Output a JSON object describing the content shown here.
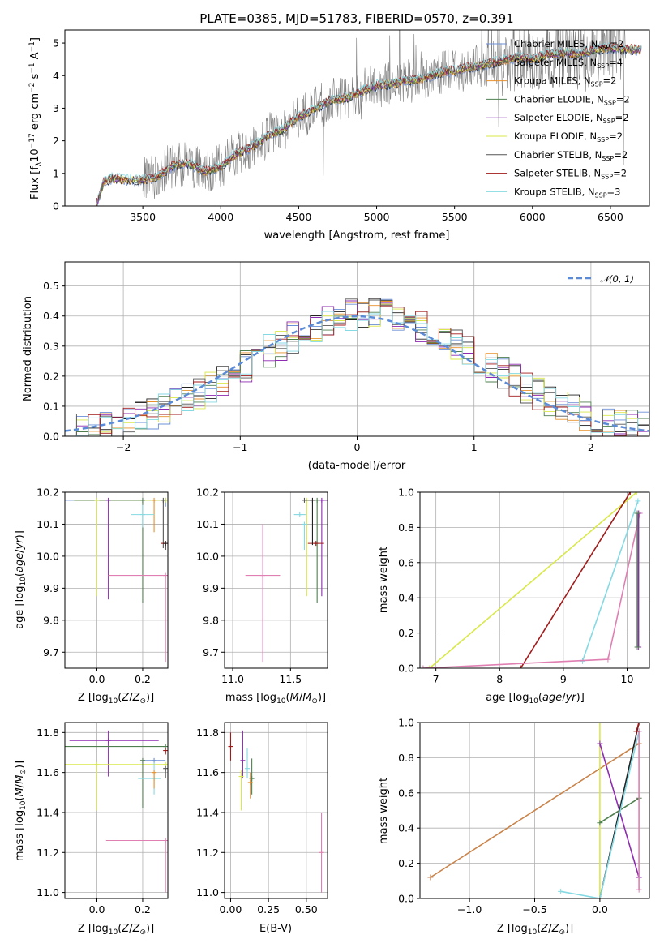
{
  "figure_title": "PLATE=0385, MJD=51783, FIBERID=0570, z=0.391",
  "legend_spectrum": [
    {
      "name": "Chabrier MILES, N$_{SSP}$=2",
      "base": "Chabrier MILES, N",
      "sub": "SSP",
      "tail": "=2",
      "color": "#6b8fd6"
    },
    {
      "name": "Salpeter MILES, N$_{SSP}$=4",
      "base": "Salpeter MILES, N",
      "sub": "SSP",
      "tail": "=4",
      "color": "#222222"
    },
    {
      "name": "Kroupa MILES, N$_{SSP}$=2",
      "base": "Kroupa MILES, N",
      "sub": "SSP",
      "tail": "=2",
      "color": "#e8912b"
    },
    {
      "name": "Chabrier ELODIE, N$_{SSP}$=2",
      "base": "Chabrier ELODIE, N",
      "sub": "SSP",
      "tail": "=2",
      "color": "#4f7f4f"
    },
    {
      "name": "Salpeter ELODIE, N$_{SSP}$=2",
      "base": "Salpeter ELODIE, N",
      "sub": "SSP",
      "tail": "=2",
      "color": "#8e2bb0"
    },
    {
      "name": "Kroupa ELODIE, N$_{SSP}$=2",
      "base": "Kroupa ELODIE, N",
      "sub": "SSP",
      "tail": "=2",
      "color": "#d9e84a"
    },
    {
      "name": "Chabrier STELIB, N$_{SSP}$=2",
      "base": "Chabrier STELIB, N",
      "sub": "SSP",
      "tail": "=2",
      "color": "#555555"
    },
    {
      "name": "Salpeter STELIB, N$_{SSP}$=2",
      "base": "Salpeter STELIB, N",
      "sub": "SSP",
      "tail": "=2",
      "color": "#a11a1a"
    },
    {
      "name": "Kroupa STELIB, N$_{SSP}$=3",
      "base": "Kroupa STELIB, N",
      "sub": "SSP",
      "tail": "=3",
      "color": "#85d9e3"
    }
  ],
  "extra_colors": {
    "pink": "#e07fb2",
    "data_gray": "#808080",
    "normal_curve": "#5b8bd6"
  },
  "chart_data": [
    {
      "id": "spectrum",
      "type": "line",
      "xlabel": "wavelength [Angstrom, rest frame]",
      "ylabel": "Flux [f$_\\lambda$10$^{-17}$ erg cm$^{-2}$ s$^{-1}$ A$^{-1}$]",
      "xlim": [
        3000,
        6750
      ],
      "ylim": [
        0,
        5.4
      ],
      "xticks": [
        "3500",
        "4000",
        "4500",
        "5000",
        "5500",
        "6000",
        "6500"
      ],
      "yticks": [
        "0",
        "1",
        "2",
        "3",
        "4",
        "5"
      ],
      "legend": "top-right",
      "model_anchor_points": {
        "x": [
          3200,
          3250,
          3300,
          3400,
          3500,
          3600,
          3700,
          3800,
          3900,
          4000,
          4100,
          4200,
          4300,
          4400,
          4500,
          4600,
          4700,
          4800,
          4900,
          5000,
          5100,
          5200,
          5300,
          5400,
          5500,
          5600,
          5700,
          5800,
          5900,
          6000,
          6100,
          6200,
          6300,
          6400,
          6500,
          6600,
          6700
        ],
        "y": [
          0.0,
          0.75,
          0.85,
          0.8,
          0.8,
          0.9,
          1.25,
          1.3,
          1.05,
          1.2,
          1.6,
          1.8,
          2.15,
          2.35,
          2.75,
          2.95,
          3.25,
          3.3,
          3.5,
          3.7,
          3.75,
          3.85,
          3.9,
          4.1,
          4.15,
          4.25,
          4.35,
          4.45,
          4.55,
          4.5,
          4.65,
          4.7,
          4.65,
          4.8,
          4.85,
          4.8,
          4.8
        ]
      }
    },
    {
      "id": "residuals",
      "type": "histogram",
      "xlabel": "(data-model)/error",
      "ylabel": "Normed distribution",
      "xlim": [
        -2.5,
        2.5
      ],
      "ylim": [
        0,
        0.58
      ],
      "xticks": [
        "−2",
        "−1",
        "0",
        "1",
        "2"
      ],
      "yticks": [
        "0.0",
        "0.1",
        "0.2",
        "0.3",
        "0.4",
        "0.5"
      ],
      "legend": "top-right",
      "legend_entry": "$\\mathcal{N}(0,1)$",
      "legend_base": "𝒩(0, 1)",
      "bin_width": 0.1,
      "bin_start": -2.5,
      "grid": true
    },
    {
      "id": "age_vs_Z",
      "type": "scatter",
      "xlabel": "Z [log$_{10}$(Z/Z$_\\odot$)]",
      "ylabel": "age  [log$_{10}$(age/yr)]",
      "xlim": [
        -0.14,
        0.31
      ],
      "ylim": [
        9.65,
        10.2
      ],
      "xticks": [
        "0.0",
        "0.2"
      ],
      "yticks": [
        "9.7",
        "9.8",
        "9.9",
        "10.0",
        "10.1",
        "10.2"
      ],
      "grid": true,
      "points": [
        {
          "x": 0.3,
          "y": 10.175,
          "xerr": [
            0.44,
            0.0
          ],
          "yerr": [
            0.02,
            0.0
          ],
          "color": "#6b8fd6"
        },
        {
          "x": 0.3,
          "y": 10.175,
          "xerr": [
            0.4,
            0.0
          ],
          "yerr": [
            0.0,
            0.0
          ],
          "color": "#d9e84a"
        },
        {
          "x": 0.2,
          "y": 10.175,
          "xerr": [
            0.3,
            0.0
          ],
          "yerr": [
            0.32,
            0.0
          ],
          "color": "#4f7f4f"
        },
        {
          "x": 0.0,
          "y": 10.175,
          "xerr": [
            0.0,
            0.0
          ],
          "yerr": [
            0.3,
            0.0
          ],
          "color": "#d9e84a"
        },
        {
          "x": 0.05,
          "y": 10.175,
          "xerr": [
            0.0,
            0.0
          ],
          "yerr": [
            0.31,
            0.0
          ],
          "color": "#8e2bb0"
        },
        {
          "x": 0.25,
          "y": 10.175,
          "xerr": [
            0.0,
            0.0
          ],
          "yerr": [
            0.1,
            0.0
          ],
          "color": "#e8912b"
        },
        {
          "x": 0.29,
          "y": 10.175,
          "xerr": [
            0.0,
            0.0
          ],
          "yerr": [
            0.15,
            0.0
          ],
          "color": "#555555"
        },
        {
          "x": 0.2,
          "y": 10.13,
          "xerr": [
            0.05,
            0.05
          ],
          "yerr": [
            0.04,
            0.03
          ],
          "color": "#85d9e3"
        },
        {
          "x": 0.3,
          "y": 10.04,
          "xerr": [
            0.02,
            0.0
          ],
          "yerr": [
            0.0,
            0.0
          ],
          "color": "#a11a1a"
        },
        {
          "x": 0.3,
          "y": 10.04,
          "xerr": [
            0.0,
            0.0
          ],
          "yerr": [
            0.02,
            0.0
          ],
          "color": "#222222"
        },
        {
          "x": 0.3,
          "y": 9.94,
          "xerr": [
            0.25,
            0.0
          ],
          "yerr": [
            0.27,
            0.0
          ],
          "color": "#e07fb2"
        }
      ]
    },
    {
      "id": "age_vs_mass",
      "type": "scatter",
      "xlabel": "mass [log$_{10}$(M/M$_\\odot$)]",
      "ylabel": "",
      "xlim": [
        10.93,
        11.82
      ],
      "ylim": [
        9.65,
        10.2
      ],
      "xticks": [
        "11.0",
        "11.5"
      ],
      "yticks": [
        "9.7",
        "9.8",
        "9.9",
        "10.0",
        "10.1",
        "10.2"
      ],
      "grid": true,
      "points": [
        {
          "x": 11.77,
          "y": 10.175,
          "xerr": [
            0.0,
            0.05
          ],
          "yerr": [
            0.3,
            0.0
          ],
          "color": "#8e2bb0"
        },
        {
          "x": 11.73,
          "y": 10.175,
          "xerr": [
            0.0,
            0.0
          ],
          "yerr": [
            0.32,
            0.0
          ],
          "color": "#4f7f4f"
        },
        {
          "x": 11.64,
          "y": 10.175,
          "xerr": [
            0.0,
            0.0
          ],
          "yerr": [
            0.3,
            0.0
          ],
          "color": "#d9e84a"
        },
        {
          "x": 11.62,
          "y": 10.175,
          "xerr": [
            0.0,
            0.06
          ],
          "yerr": [
            0.0,
            0.0
          ],
          "color": "#555555"
        },
        {
          "x": 11.58,
          "y": 10.13,
          "xerr": [
            0.05,
            0.05
          ],
          "yerr": [
            0.0,
            0.0
          ],
          "color": "#85d9e3"
        },
        {
          "x": 11.62,
          "y": 10.1,
          "xerr": [
            0.0,
            0.0
          ],
          "yerr": [
            0.08,
            0.0
          ],
          "color": "#85d9e3"
        },
        {
          "x": 11.72,
          "y": 10.04,
          "xerr": [
            0.07,
            0.07
          ],
          "yerr": [
            0.0,
            0.0
          ],
          "color": "#a11a1a"
        },
        {
          "x": 11.69,
          "y": 10.175,
          "xerr": [
            0.0,
            0.0
          ],
          "yerr": [
            0.14,
            0.0
          ],
          "color": "#222222"
        },
        {
          "x": 11.26,
          "y": 9.94,
          "xerr": [
            0.15,
            0.15
          ],
          "yerr": [
            0.27,
            0.16
          ],
          "color": "#e07fb2"
        }
      ]
    },
    {
      "id": "weight_vs_age",
      "type": "line",
      "xlabel": "age  [log$_{10}$(age/yr)]",
      "ylabel": "mass weight",
      "xlim": [
        6.75,
        10.35
      ],
      "ylim": [
        0,
        1.0
      ],
      "xticks": [
        "7",
        "8",
        "9",
        "10"
      ],
      "yticks": [
        "0.0",
        "0.2",
        "0.4",
        "0.6",
        "0.8",
        "1.0"
      ],
      "grid": true,
      "series": [
        {
          "color": "#d9e84a",
          "x": [
            6.9,
            10.15
          ],
          "y": [
            0.0,
            1.0
          ]
        },
        {
          "color": "#a11a1a",
          "x": [
            8.33,
            10.05
          ],
          "y": [
            0.0,
            1.0
          ]
        },
        {
          "color": "#85d9e3",
          "x": [
            9.3,
            10.17
          ],
          "y": [
            0.04,
            0.95
          ]
        },
        {
          "color": "#e07fb2",
          "x": [
            6.8,
            9.7,
            10.2
          ],
          "y": [
            0.0,
            0.05,
            0.88
          ]
        },
        {
          "color": "#8e2bb0",
          "x": [
            10.18,
            10.18
          ],
          "y": [
            0.88,
            0.12
          ]
        },
        {
          "color": "#4f7f4f",
          "x": [
            10.16,
            10.16
          ],
          "y": [
            0.88,
            0.12
          ]
        }
      ]
    },
    {
      "id": "mass_vs_Z",
      "type": "scatter",
      "xlabel": "Z [log$_{10}$(Z/Z$_\\odot$)]",
      "ylabel": "mass [log$_{10}$(M/M$_\\odot$)]",
      "xlim": [
        -0.14,
        0.31
      ],
      "ylim": [
        10.97,
        11.85
      ],
      "xticks": [
        "0.0",
        "0.2"
      ],
      "yticks": [
        "11.0",
        "11.2",
        "11.4",
        "11.6",
        "11.8"
      ],
      "grid": true,
      "points": [
        {
          "x": 0.05,
          "y": 11.76,
          "xerr": [
            0.17,
            0.22
          ],
          "yerr": [
            0.18,
            0.05
          ],
          "color": "#8e2bb0"
        },
        {
          "x": 0.3,
          "y": 11.73,
          "xerr": [
            0.44,
            0.0
          ],
          "yerr": [
            0.0,
            0.0
          ],
          "color": "#4f7f4f"
        },
        {
          "x": 0.3,
          "y": 11.64,
          "xerr": [
            0.44,
            0.0
          ],
          "yerr": [
            0.0,
            0.0
          ],
          "color": "#d9e84a"
        },
        {
          "x": 0.25,
          "y": 11.66,
          "xerr": [
            0.05,
            0.05
          ],
          "yerr": [
            0.0,
            0.0
          ],
          "color": "#6b8fd6"
        },
        {
          "x": 0.2,
          "y": 11.66,
          "xerr": [
            0.0,
            0.0
          ],
          "yerr": [
            0.24,
            0.0
          ],
          "color": "#4f7f4f"
        },
        {
          "x": 0.3,
          "y": 11.71,
          "xerr": [
            0.0,
            0.0
          ],
          "yerr": [
            0.02,
            0.0
          ],
          "color": "#a11a1a"
        },
        {
          "x": 0.3,
          "y": 11.62,
          "xerr": [
            0.0,
            0.0
          ],
          "yerr": [
            0.05,
            0.0
          ],
          "color": "#555555"
        },
        {
          "x": 0.25,
          "y": 11.57,
          "xerr": [
            0.07,
            0.03
          ],
          "yerr": [
            0.08,
            0.08
          ],
          "color": "#85d9e3"
        },
        {
          "x": 0.25,
          "y": 11.6,
          "xerr": [
            0.0,
            0.0
          ],
          "yerr": [
            0.08,
            0.0
          ],
          "color": "#e8912b"
        },
        {
          "x": 0.0,
          "y": 11.64,
          "xerr": [
            0.0,
            0.0
          ],
          "yerr": [
            0.23,
            0.0
          ],
          "color": "#d9e84a"
        },
        {
          "x": 0.3,
          "y": 11.26,
          "xerr": [
            0.26,
            0.0
          ],
          "yerr": [
            0.26,
            0.0
          ],
          "color": "#e07fb2"
        }
      ]
    },
    {
      "id": "mass_vs_ebv",
      "type": "scatter",
      "xlabel": "E(B-V)",
      "ylabel": "",
      "xlim": [
        -0.04,
        0.64
      ],
      "ylim": [
        10.97,
        11.85
      ],
      "xticks": [
        "0.00",
        "0.25",
        "0.50"
      ],
      "yticks": [
        "11.0",
        "11.2",
        "11.4",
        "11.6",
        "11.8"
      ],
      "grid": true,
      "points": [
        {
          "x": 0.0,
          "y": 11.73,
          "xerr": [
            0.0,
            0.0
          ],
          "yerr": [
            0.07,
            0.07
          ],
          "color": "#a11a1a"
        },
        {
          "x": 0.08,
          "y": 11.66,
          "xerr": [
            0.0,
            0.0
          ],
          "yerr": [
            0.09,
            0.15
          ],
          "color": "#8e2bb0"
        },
        {
          "x": 0.07,
          "y": 11.58,
          "xerr": [
            0.0,
            0.0
          ],
          "yerr": [
            0.17,
            0.03
          ],
          "color": "#d9e84a"
        },
        {
          "x": 0.11,
          "y": 11.62,
          "xerr": [
            0.0,
            0.0
          ],
          "yerr": [
            0.05,
            0.1
          ],
          "color": "#85d9e3"
        },
        {
          "x": 0.14,
          "y": 11.57,
          "xerr": [
            0.0,
            0.0
          ],
          "yerr": [
            0.08,
            0.1
          ],
          "color": "#4f7f4f"
        },
        {
          "x": 0.13,
          "y": 11.55,
          "xerr": [
            0.0,
            0.0
          ],
          "yerr": [
            0.08,
            0.05
          ],
          "color": "#e8912b"
        },
        {
          "x": 0.6,
          "y": 11.2,
          "xerr": [
            0.0,
            0.0
          ],
          "yerr": [
            0.2,
            0.2
          ],
          "color": "#e07fb2"
        }
      ]
    },
    {
      "id": "weight_vs_Z",
      "type": "line",
      "xlabel": "Z [log$_{10}$(Z/Z$_\\odot$)]",
      "ylabel": "mass weight",
      "xlim": [
        -1.38,
        0.38
      ],
      "ylim": [
        0,
        1.0
      ],
      "xticks": [
        "−1.0",
        "−0.5",
        "0.0"
      ],
      "yticks": [
        "0.0",
        "0.2",
        "0.4",
        "0.6",
        "0.8",
        "1.0"
      ],
      "grid": true,
      "series": [
        {
          "color": "#c8834a",
          "x": [
            -1.3,
            0.3
          ],
          "y": [
            0.12,
            0.88
          ]
        },
        {
          "color": "#d9e84a",
          "x": [
            0.0,
            0.0
          ],
          "y": [
            1.0,
            0.0
          ]
        },
        {
          "color": "#8e2bb0",
          "x": [
            0.0,
            0.3
          ],
          "y": [
            0.88,
            0.12
          ]
        },
        {
          "color": "#4f7f4f",
          "x": [
            0.0,
            0.3
          ],
          "y": [
            0.43,
            0.57
          ]
        },
        {
          "color": "#222222",
          "x": [
            0.0,
            0.3
          ],
          "y": [
            0.0,
            1.0
          ]
        },
        {
          "color": "#85d9e3",
          "x": [
            -0.3,
            0.0,
            0.3
          ],
          "y": [
            0.04,
            0.0,
            0.95
          ]
        },
        {
          "color": "#e07fb2",
          "x": [
            0.3,
            0.3
          ],
          "y": [
            0.05,
            0.95
          ]
        },
        {
          "color": "#a11a1a",
          "x": [
            0.28,
            0.3
          ],
          "y": [
            0.95,
            1.0
          ]
        }
      ]
    }
  ]
}
